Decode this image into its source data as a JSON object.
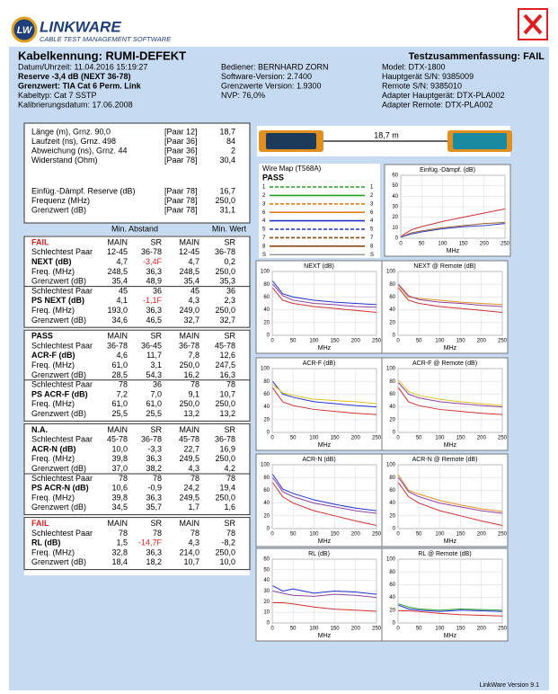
{
  "logo": {
    "mark": "LW",
    "name": "LINKWARE",
    "tagline": "CABLE TEST MANAGEMENT SOFTWARE"
  },
  "header": {
    "title": "Kabelkennung: RUMI-DEFEKT",
    "summary": "Testzusammenfassung: FAIL",
    "col1": [
      "Datum/Uhrzeit: 11.04.2016  15:19:27",
      "Reserve -3,4 dB (NEXT 36-78)",
      "Grenzwert: TIA Cat 6 Perm. Link",
      "Kabeltyp: Cat 7 SSTP",
      "Kalibrierungsdatum: 17.06.2008"
    ],
    "col2": [
      "Bediener: BERNHARD ZORN",
      "Software-Version: 2.7400",
      "Grenzwerte Version: 1.9300",
      "NVP: 76,0%"
    ],
    "col3": [
      "Model: DTX-1800",
      "Hauptgerät S/N: 9385009",
      "Remote S/N: 9385010",
      "Adapter Hauptgerät: DTX-PLA002",
      "Adapter Remote: DTX-PLA002"
    ]
  },
  "summary_rows": [
    [
      "Länge (m), Grnz. 90,0",
      "[Paar 12]",
      "18,7"
    ],
    [
      "Laufzeit (ns), Grnz. 498",
      "[Paar 36]",
      "84"
    ],
    [
      "Abweichung (ns), Grnz. 44",
      "[Paar 36]",
      "2"
    ],
    [
      "Widerstand (Ohm)",
      "[Paar 78]",
      "30,4"
    ],
    [
      "Einfüg.-Dämpf. Reserve (dB)",
      "[Paar 78]",
      "16,7"
    ],
    [
      "Frequenz (MHz)",
      "[Paar 78]",
      "250,0"
    ],
    [
      "Grenzwert (dB)",
      "[Paar 78]",
      "31,1"
    ]
  ],
  "results": {
    "heading": [
      "Min. Abstand",
      "Min. Wert"
    ],
    "sections": [
      {
        "status": "FAIL",
        "columns": [
          "MAIN",
          "SR",
          "MAIN",
          "SR"
        ],
        "rows": [
          [
            "Schlechtest Paar",
            "12-45",
            "36-78",
            "12-45",
            "36-78"
          ],
          [
            "NEXT (dB)",
            "4,7",
            "-3,4F",
            "4,7",
            "0,2"
          ],
          [
            "Freq. (MHz)",
            "248,5",
            "36,3",
            "248,5",
            "250,0"
          ],
          [
            "Grenzwert (dB)",
            "35,4",
            "48,9",
            "35,4",
            "35,3"
          ],
          [
            "Schlechtest Paar",
            "45",
            "36",
            "45",
            "36"
          ],
          [
            "PS NEXT (dB)",
            "4,1",
            "-1,1F",
            "4,3",
            "2,3"
          ],
          [
            "Freq. (MHz)",
            "193,0",
            "36,3",
            "249,0",
            "250,0"
          ],
          [
            "Grenzwert (dB)",
            "34,6",
            "46,5",
            "32,7",
            "32,7"
          ]
        ]
      },
      {
        "status": "PASS",
        "columns": [
          "MAIN",
          "SR",
          "MAIN",
          "SR"
        ],
        "rows": [
          [
            "Schlechtest Paar",
            "36-78",
            "36-45",
            "36-78",
            "45-78"
          ],
          [
            "ACR-F (dB)",
            "4,6",
            "11,7",
            "7,8",
            "12,6"
          ],
          [
            "Freq. (MHz)",
            "61,0",
            "3,1",
            "250,0",
            "247,5"
          ],
          [
            "Grenzwert (dB)",
            "28,5",
            "54,3",
            "16,2",
            "16,3"
          ],
          [
            "Schlechtest Paar",
            "78",
            "36",
            "78",
            "78"
          ],
          [
            "PS ACR-F (dB)",
            "7,2",
            "7,0",
            "9,1",
            "10,7"
          ],
          [
            "Freq. (MHz)",
            "61,0",
            "61,0",
            "250,0",
            "250,0"
          ],
          [
            "Grenzwert (dB)",
            "25,5",
            "25,5",
            "13,2",
            "13,2"
          ]
        ]
      },
      {
        "status": "N.A.",
        "columns": [
          "MAIN",
          "SR",
          "MAIN",
          "SR"
        ],
        "rows": [
          [
            "Schlechtest Paar",
            "45-78",
            "36-78",
            "45-78",
            "36-78"
          ],
          [
            "ACR-N (dB)",
            "10,0",
            "-3,3",
            "22,7",
            "16,9"
          ],
          [
            "Freq. (MHz)",
            "39,8",
            "36,3",
            "249,5",
            "250,0"
          ],
          [
            "Grenzwert (dB)",
            "37,0",
            "38,2",
            "4,3",
            "4,2"
          ],
          [
            "Schlechtest Paar",
            "78",
            "78",
            "78",
            "78"
          ],
          [
            "PS ACR-N (dB)",
            "10,6",
            "-0,9",
            "24,2",
            "19,4"
          ],
          [
            "Freq. (MHz)",
            "39,8",
            "36,3",
            "249,5",
            "250,0"
          ],
          [
            "Grenzwert (dB)",
            "34,5",
            "35,7",
            "1,7",
            "1,6"
          ]
        ]
      },
      {
        "status": "FAIL",
        "columns": [
          "MAIN",
          "SR",
          "MAIN",
          "SR"
        ],
        "rows": [
          [
            "Schlechtest Paar",
            "78",
            "78",
            "78",
            "78"
          ],
          [
            "RL (dB)",
            "1,5",
            "-14,7F",
            "4,3",
            "-8,2"
          ],
          [
            "Freq. (MHz)",
            "32,8",
            "36,3",
            "214,0",
            "250,0"
          ],
          [
            "Grenzwert (dB)",
            "18,4",
            "18,2",
            "10,7",
            "10,0"
          ]
        ]
      }
    ]
  },
  "cable": {
    "length": "18,7 m"
  },
  "wire_map": {
    "title": "Wire Map (T568A)",
    "status": "PASS",
    "pins": [
      "1",
      "2",
      "3",
      "6",
      "4",
      "5",
      "7",
      "8",
      "S"
    ]
  },
  "graphs": [
    {
      "title": "Einfüg.-Dämpf. (dB)",
      "xlabel": "MHz",
      "x": [
        1,
        25,
        50,
        100,
        150,
        200,
        250
      ],
      "xlim": [
        0,
        250
      ],
      "xticks": [
        0,
        50,
        100,
        150,
        200,
        250
      ],
      "ylim": [
        0,
        60
      ],
      "yticks": [
        0,
        10,
        20,
        30,
        40,
        50,
        60
      ],
      "series": [
        {
          "color": "#d03030",
          "values": [
            2,
            8,
            11,
            16,
            20,
            24,
            28
          ]
        },
        {
          "color": "#a06030",
          "values": [
            1,
            5,
            7,
            10,
            12,
            14,
            15
          ]
        },
        {
          "color": "#3040c0",
          "values": [
            1,
            4,
            6,
            9,
            11,
            12,
            14
          ]
        }
      ]
    },
    {
      "title": "NEXT (dB)",
      "xlabel": "MHz",
      "x": [
        1,
        25,
        50,
        100,
        150,
        200,
        250
      ],
      "xlim": [
        0,
        250
      ],
      "xticks": [
        0,
        50,
        100,
        150,
        200,
        250
      ],
      "ylim": [
        0,
        100
      ],
      "yticks": [
        0,
        20,
        40,
        60,
        80,
        100
      ],
      "series": [
        {
          "color": "#d03030",
          "values": [
            74,
            55,
            50,
            45,
            42,
            39,
            36
          ]
        },
        {
          "color": "#2030d0",
          "values": [
            85,
            65,
            60,
            55,
            52,
            50,
            48
          ]
        },
        {
          "color": "#9040a0",
          "values": [
            80,
            62,
            55,
            50,
            48,
            45,
            44
          ]
        }
      ]
    },
    {
      "title": "NEXT @ Remote (dB)",
      "xlabel": "MHz",
      "x": [
        1,
        25,
        50,
        100,
        150,
        200,
        250
      ],
      "xlim": [
        0,
        250
      ],
      "xticks": [
        0,
        50,
        100,
        150,
        200,
        250
      ],
      "ylim": [
        0,
        100
      ],
      "yticks": [
        0,
        20,
        40,
        60,
        80,
        100
      ],
      "series": [
        {
          "color": "#d03030",
          "values": [
            74,
            55,
            50,
            45,
            42,
            39,
            36
          ]
        },
        {
          "color": "#e09020",
          "values": [
            78,
            60,
            58,
            55,
            52,
            50,
            48
          ]
        },
        {
          "color": "#9040a0",
          "values": [
            80,
            62,
            56,
            52,
            50,
            47,
            45
          ]
        }
      ]
    },
    {
      "title": "ACR-F (dB)",
      "xlabel": "MHz",
      "x": [
        1,
        25,
        50,
        100,
        150,
        200,
        250
      ],
      "xlim": [
        0,
        250
      ],
      "xticks": [
        0,
        50,
        100,
        150,
        200,
        250
      ],
      "ylim": [
        0,
        100
      ],
      "yticks": [
        0,
        20,
        40,
        60,
        80,
        100
      ],
      "series": [
        {
          "color": "#d03030",
          "values": [
            70,
            48,
            42,
            36,
            33,
            30,
            28
          ]
        },
        {
          "color": "#2030d0",
          "values": [
            80,
            60,
            55,
            48,
            45,
            42,
            40
          ]
        },
        {
          "color": "#e0c020",
          "values": [
            75,
            62,
            58,
            52,
            50,
            48,
            45
          ]
        }
      ]
    },
    {
      "title": "ACR-F @ Remote (dB)",
      "xlabel": "MHz",
      "x": [
        1,
        25,
        50,
        100,
        150,
        200,
        250
      ],
      "xlim": [
        0,
        250
      ],
      "xticks": [
        0,
        50,
        100,
        150,
        200,
        250
      ],
      "ylim": [
        0,
        100
      ],
      "yticks": [
        0,
        20,
        40,
        60,
        80,
        100
      ],
      "series": [
        {
          "color": "#d03030",
          "values": [
            70,
            48,
            42,
            36,
            33,
            30,
            28
          ]
        },
        {
          "color": "#e0c020",
          "values": [
            82,
            64,
            58,
            52,
            48,
            45,
            42
          ]
        },
        {
          "color": "#9040a0",
          "values": [
            78,
            60,
            54,
            48,
            45,
            42,
            40
          ]
        }
      ]
    },
    {
      "title": "ACR-N (dB)",
      "xlabel": "MHz",
      "x": [
        1,
        25,
        50,
        100,
        150,
        200,
        250
      ],
      "xlim": [
        0,
        250
      ],
      "xticks": [
        0,
        50,
        100,
        150,
        200,
        250
      ],
      "ylim": [
        0,
        100
      ],
      "yticks": [
        0,
        20,
        40,
        60,
        80,
        100
      ],
      "series": [
        {
          "color": "#d03030",
          "values": [
            72,
            50,
            40,
            28,
            20,
            12,
            5
          ]
        },
        {
          "color": "#2030d0",
          "values": [
            85,
            62,
            55,
            45,
            38,
            32,
            28
          ]
        },
        {
          "color": "#9040a0",
          "values": [
            80,
            58,
            50,
            40,
            34,
            28,
            24
          ]
        }
      ]
    },
    {
      "title": "ACR-N @ Remote (dB)",
      "xlabel": "MHz",
      "x": [
        1,
        25,
        50,
        100,
        150,
        200,
        250
      ],
      "xlim": [
        0,
        250
      ],
      "xticks": [
        0,
        50,
        100,
        150,
        200,
        250
      ],
      "ylim": [
        0,
        100
      ],
      "yticks": [
        0,
        20,
        40,
        60,
        80,
        100
      ],
      "series": [
        {
          "color": "#d03030",
          "values": [
            72,
            50,
            40,
            28,
            20,
            12,
            5
          ]
        },
        {
          "color": "#e09020",
          "values": [
            84,
            60,
            54,
            44,
            37,
            31,
            27
          ]
        },
        {
          "color": "#9040a0",
          "values": [
            80,
            58,
            50,
            40,
            34,
            28,
            24
          ]
        }
      ]
    },
    {
      "title": "RL (dB)",
      "xlabel": "MHz",
      "x": [
        1,
        25,
        50,
        100,
        150,
        200,
        250
      ],
      "xlim": [
        0,
        250
      ],
      "xticks": [
        0,
        50,
        100,
        150,
        200,
        250
      ],
      "ylim": [
        0,
        60
      ],
      "yticks": [
        0,
        10,
        20,
        30,
        40,
        50,
        60
      ],
      "series": [
        {
          "color": "#d03030",
          "values": [
            19,
            19,
            18,
            15,
            13,
            12,
            11
          ]
        },
        {
          "color": "#2030d0",
          "values": [
            35,
            30,
            32,
            28,
            30,
            29,
            27
          ]
        },
        {
          "color": "#9040a0",
          "values": [
            30,
            28,
            26,
            25,
            27,
            26,
            24
          ]
        }
      ]
    },
    {
      "title": "RL @ Remote (dB)",
      "xlabel": "MHz",
      "x": [
        1,
        25,
        50,
        100,
        150,
        200,
        250
      ],
      "xlim": [
        0,
        250
      ],
      "xticks": [
        0,
        50,
        100,
        150,
        200,
        250
      ],
      "ylim": [
        0,
        100
      ],
      "yticks": [
        0,
        20,
        40,
        60,
        80,
        100
      ],
      "series": [
        {
          "color": "#d03030",
          "values": [
            19,
            19,
            18,
            15,
            13,
            12,
            11
          ]
        },
        {
          "color": "#30a030",
          "values": [
            30,
            25,
            22,
            20,
            22,
            21,
            20
          ]
        },
        {
          "color": "#2030d0",
          "values": [
            28,
            22,
            20,
            18,
            20,
            19,
            18
          ]
        }
      ]
    }
  ],
  "footer": "LinkWare Version 9.1"
}
